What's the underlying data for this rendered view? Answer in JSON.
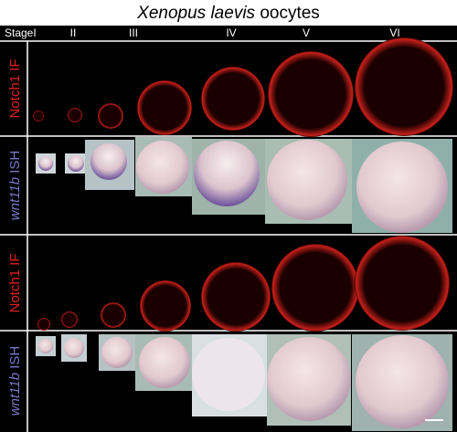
{
  "title": {
    "italic": "Xenopus laevis",
    "rest": "oocytes"
  },
  "header": {
    "label": "Stage",
    "stages": [
      "I",
      "II",
      "III",
      "IV",
      "V",
      "VI"
    ]
  },
  "rows": [
    {
      "main": "Notch1",
      "suffix": "IF"
    },
    {
      "main": "wnt11b",
      "suffix": "ISH"
    },
    {
      "main": "Notch1",
      "suffix": "IF"
    },
    {
      "main": "wnt11b",
      "suffix": "ISH"
    }
  ]
}
